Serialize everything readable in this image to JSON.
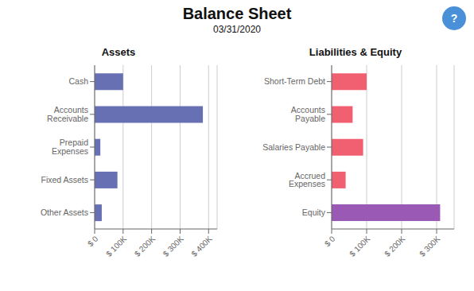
{
  "title": "Balance Sheet",
  "subtitle": "03/31/2020",
  "annotations": [
    {
      "text": "?",
      "color": "#4a90d9"
    }
  ],
  "chart_data": [
    {
      "type": "bar",
      "orientation": "horizontal",
      "title": "Assets",
      "categories": [
        "Cash",
        "Accounts Receivable",
        "Prepaid Expenses",
        "Fixed Assets",
        "Other Assets"
      ],
      "values": [
        100000,
        380000,
        20000,
        80000,
        25000
      ],
      "color": "#6870b4",
      "xlim": [
        0,
        430000
      ],
      "xticks": [
        {
          "value": 0,
          "label": "$ 0"
        },
        {
          "value": 100000,
          "label": "$ 100K"
        },
        {
          "value": 200000,
          "label": "$ 200K"
        },
        {
          "value": 300000,
          "label": "$ 300K"
        },
        {
          "value": 400000,
          "label": "$ 400K"
        }
      ],
      "grid": true
    },
    {
      "type": "bar",
      "orientation": "horizontal",
      "title": "Liabilities & Equity",
      "categories": [
        "Short-Term Debt",
        "Accounts Payable",
        "Salaries Payable",
        "Accrued Expenses",
        "Equity"
      ],
      "values": [
        100000,
        60000,
        90000,
        40000,
        310000
      ],
      "colors": [
        "#f06070",
        "#f06070",
        "#f06070",
        "#f06070",
        "#9b59b6"
      ],
      "xlim": [
        0,
        350000
      ],
      "xticks": [
        {
          "value": 0,
          "label": "$ 0"
        },
        {
          "value": 100000,
          "label": "$ 100K"
        },
        {
          "value": 200000,
          "label": "$ 200K"
        },
        {
          "value": 300000,
          "label": "$ 300K"
        }
      ],
      "grid": true
    }
  ]
}
